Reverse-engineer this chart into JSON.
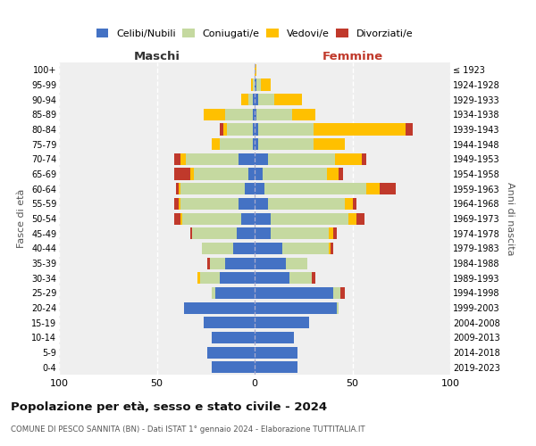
{
  "age_groups": [
    "100+",
    "95-99",
    "90-94",
    "85-89",
    "80-84",
    "75-79",
    "70-74",
    "65-69",
    "60-64",
    "55-59",
    "50-54",
    "45-49",
    "40-44",
    "35-39",
    "30-34",
    "25-29",
    "20-24",
    "15-19",
    "10-14",
    "5-9",
    "0-4"
  ],
  "birth_years": [
    "≤ 1923",
    "1924-1928",
    "1929-1933",
    "1934-1938",
    "1939-1943",
    "1944-1948",
    "1949-1953",
    "1954-1958",
    "1959-1963",
    "1964-1968",
    "1969-1973",
    "1974-1978",
    "1979-1983",
    "1984-1988",
    "1989-1993",
    "1994-1998",
    "1999-2003",
    "2004-2008",
    "2009-2013",
    "2014-2018",
    "2019-2023"
  ],
  "colors": {
    "celibi": "#4472c4",
    "coniugati": "#c5d9a0",
    "vedovi": "#ffc000",
    "divorziati": "#c0392b"
  },
  "maschi": {
    "celibi": [
      0,
      0,
      1,
      1,
      1,
      1,
      8,
      3,
      5,
      8,
      7,
      9,
      11,
      15,
      18,
      20,
      36,
      26,
      22,
      24,
      22
    ],
    "coniugati": [
      0,
      1,
      2,
      14,
      13,
      17,
      27,
      28,
      33,
      30,
      30,
      23,
      16,
      8,
      10,
      2,
      0,
      0,
      0,
      0,
      0
    ],
    "vedovi": [
      0,
      1,
      4,
      11,
      2,
      4,
      3,
      2,
      1,
      1,
      1,
      0,
      0,
      0,
      1,
      0,
      0,
      0,
      0,
      0,
      0
    ],
    "divorziati": [
      0,
      0,
      0,
      0,
      2,
      0,
      3,
      8,
      1,
      2,
      3,
      1,
      0,
      1,
      0,
      0,
      0,
      0,
      0,
      0,
      0
    ]
  },
  "femmine": {
    "celibi": [
      0,
      1,
      2,
      1,
      2,
      2,
      7,
      4,
      5,
      7,
      8,
      8,
      14,
      16,
      18,
      40,
      42,
      28,
      20,
      22,
      22
    ],
    "coniugati": [
      0,
      2,
      8,
      18,
      28,
      28,
      34,
      33,
      52,
      39,
      40,
      30,
      24,
      11,
      11,
      4,
      1,
      0,
      0,
      0,
      0
    ],
    "vedovi": [
      1,
      5,
      14,
      12,
      47,
      16,
      14,
      6,
      7,
      4,
      4,
      2,
      1,
      0,
      0,
      0,
      0,
      0,
      0,
      0,
      0
    ],
    "divorziati": [
      0,
      0,
      0,
      0,
      4,
      0,
      2,
      2,
      8,
      2,
      4,
      2,
      1,
      0,
      2,
      2,
      0,
      0,
      0,
      0,
      0
    ]
  },
  "title": "Popolazione per età, sesso e stato civile - 2024",
  "subtitle": "COMUNE DI PESCO SANNITA (BN) - Dati ISTAT 1° gennaio 2024 - Elaborazione TUTTITALIA.IT",
  "xlabel_left": "Maschi",
  "xlabel_right": "Femmine",
  "ylabel_left": "Fasce di età",
  "ylabel_right": "Anni di nascita",
  "xlim": 100,
  "legend_labels": [
    "Celibi/Nubili",
    "Coniugati/e",
    "Vedovi/e",
    "Divorziati/e"
  ],
  "background_color": "#efefef"
}
